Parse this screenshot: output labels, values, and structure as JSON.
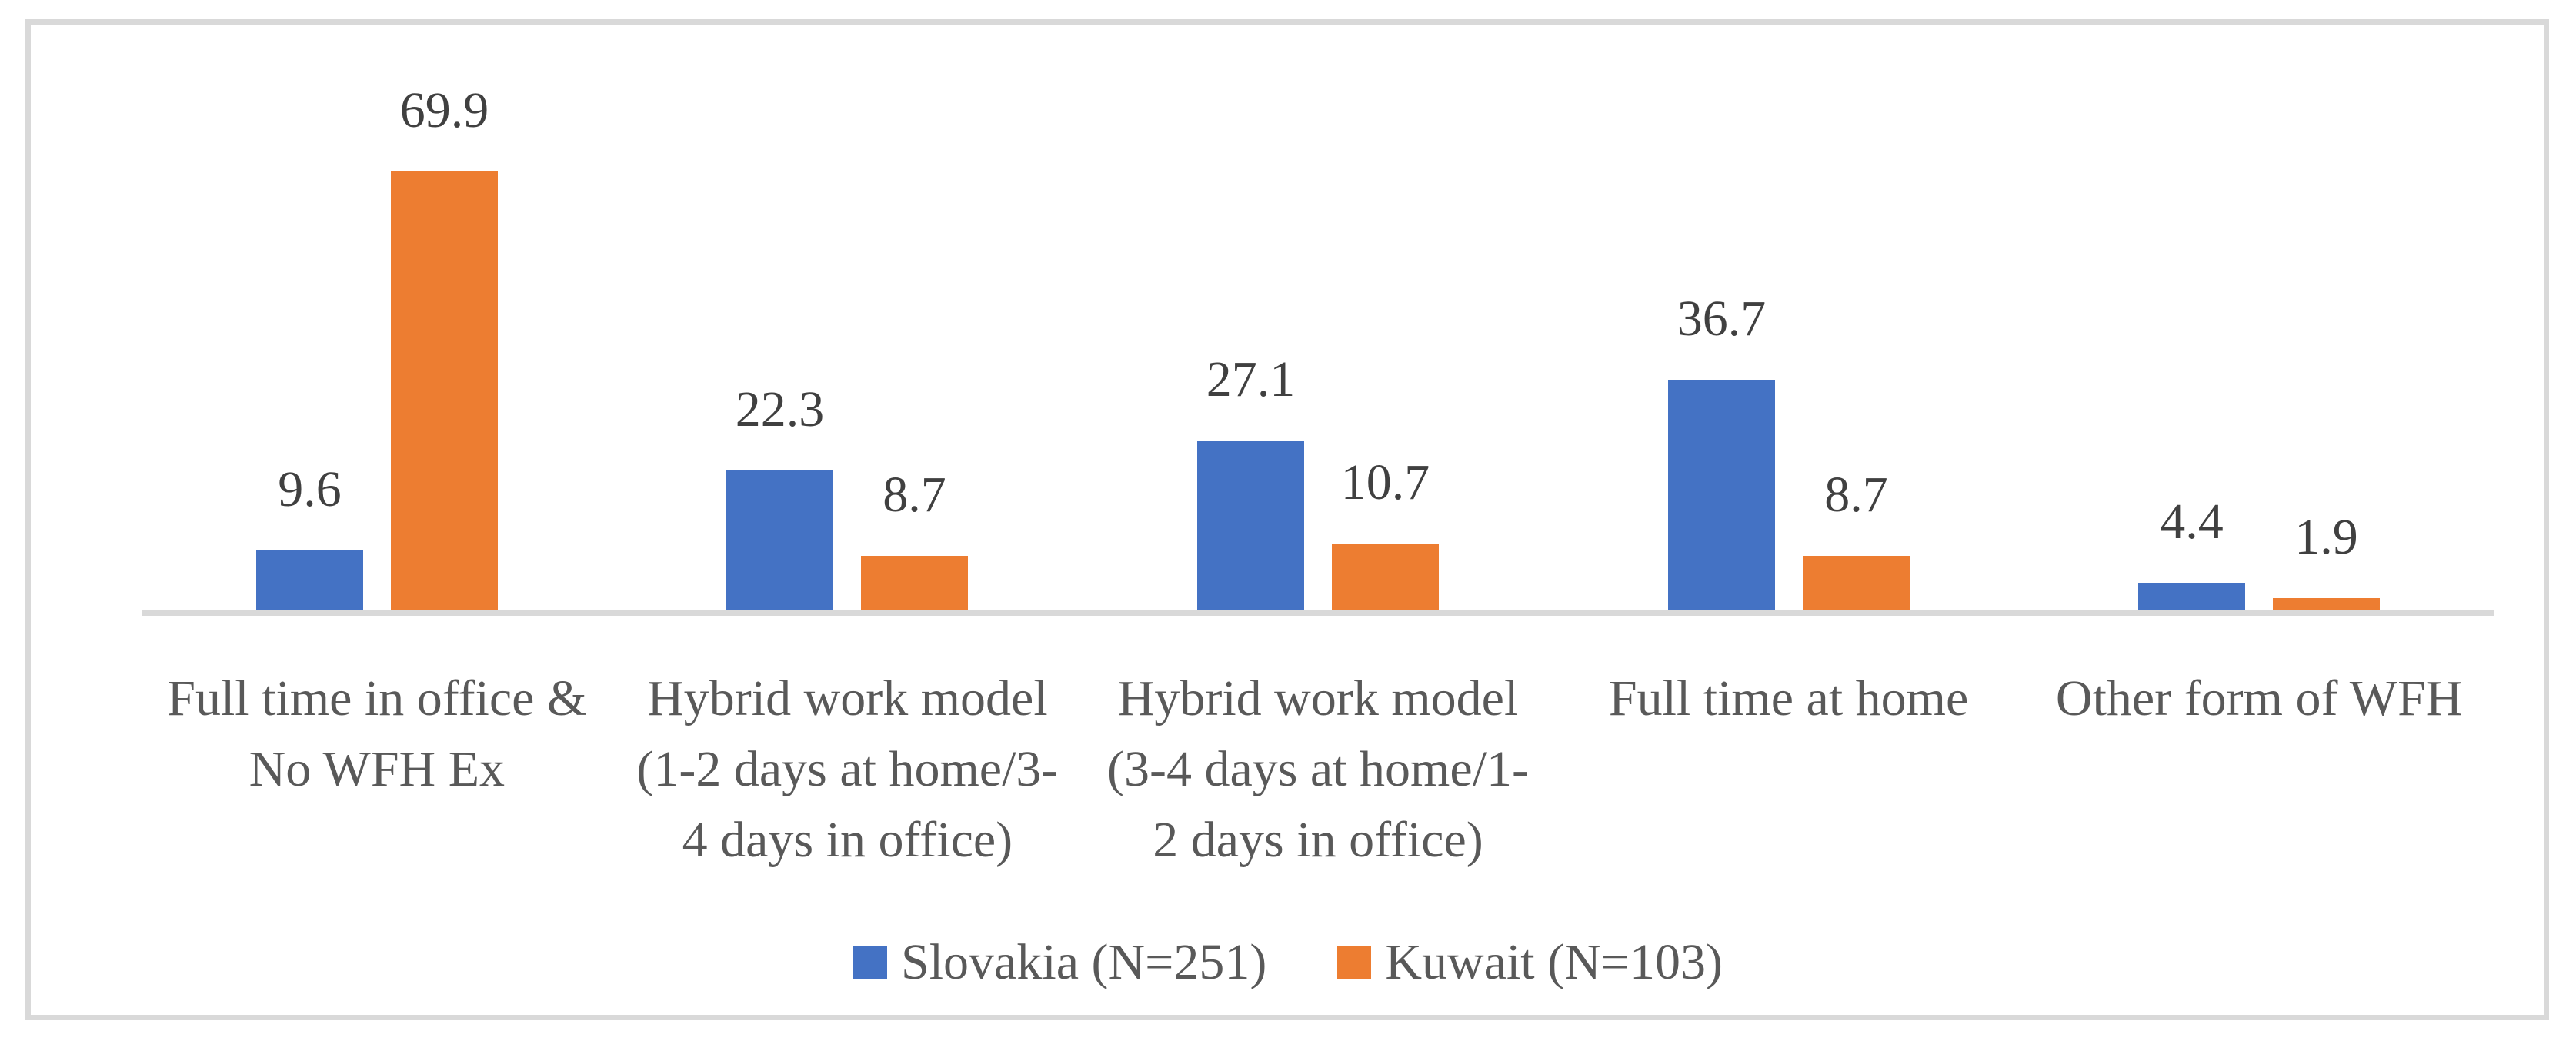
{
  "chart_data": {
    "type": "bar",
    "title": "",
    "xlabel": "",
    "ylabel": "",
    "categories": [
      "Full time in office & No WFH Ex",
      "Hybrid work model (1-2 days at home/3-4 days in office)",
      "Hybrid work model (3-4 days at home/1-2 days in office)",
      "Full time at home",
      "Other form of WFH"
    ],
    "categories_wrapped": [
      [
        "Full time in office &",
        "No WFH Ex"
      ],
      [
        "Hybrid work model",
        "(1-2 days at home/3-",
        "4 days in office)"
      ],
      [
        "Hybrid work model",
        "(3-4 days at home/1-",
        "2 days in office)"
      ],
      [
        "Full time at home"
      ],
      [
        "Other form of WFH"
      ]
    ],
    "series": [
      {
        "name": "Slovakia (N=251)",
        "color": "#4472C4",
        "values": [
          9.6,
          22.3,
          27.1,
          36.7,
          4.4
        ]
      },
      {
        "name": "Kuwait (N=103)",
        "color": "#ED7D31",
        "values": [
          69.9,
          8.7,
          10.7,
          8.7,
          1.9
        ]
      }
    ],
    "value_labels_shown": true,
    "ylim": [
      0,
      80
    ],
    "gridlines": false,
    "y_axis_visible": false,
    "legend_position": "bottom"
  },
  "colors": {
    "frame_border": "#D9D9D9",
    "axis_line": "#D9D9D9",
    "value_label_text": "#404040",
    "category_label_text": "#595959",
    "legend_text": "#595959",
    "background": "#FFFFFF"
  }
}
